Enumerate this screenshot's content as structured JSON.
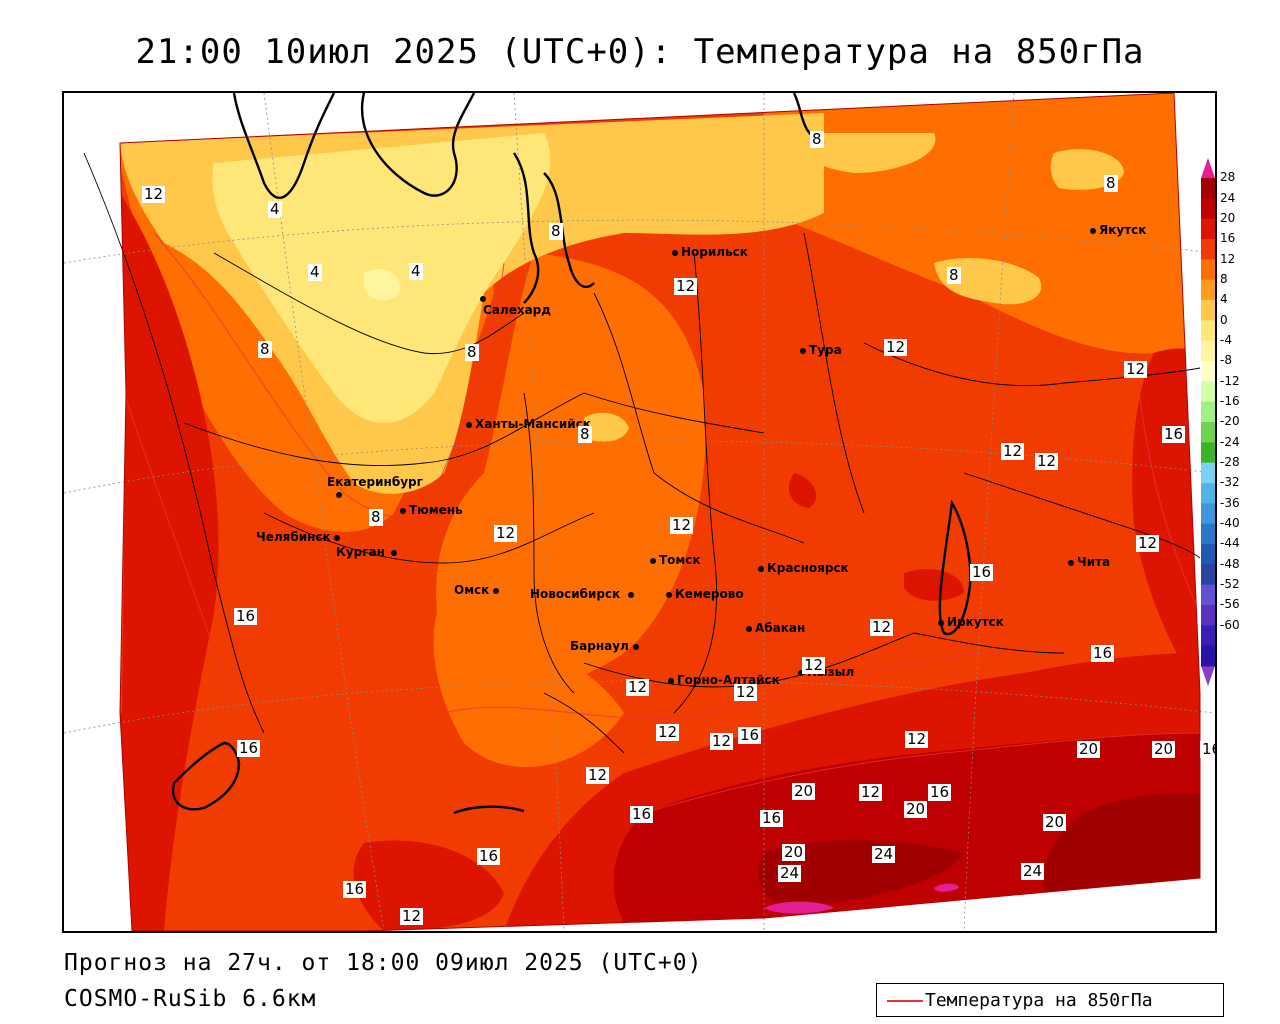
{
  "header": {
    "title": "21:00 10июл 2025 (UTC+0): Температура на 850гПа"
  },
  "footer": {
    "forecast": "Прогноз на 27ч. от 18:00 09июл 2025 (UTC+0)",
    "model": "COSMO-RuSib 6.6км",
    "legend_label": "Температура на 850гПа",
    "legend_line_color": "#e8343a"
  },
  "cities": [
    {
      "name": "Салехард"
    },
    {
      "name": "Норильск"
    },
    {
      "name": "Якутск"
    },
    {
      "name": "Тура"
    },
    {
      "name": "Ханты-Мансийск"
    },
    {
      "name": "Екатеринбург"
    },
    {
      "name": "Тюмень"
    },
    {
      "name": "Челябинск"
    },
    {
      "name": "Курган"
    },
    {
      "name": "Омск"
    },
    {
      "name": "Новосибирск"
    },
    {
      "name": "Томск"
    },
    {
      "name": "Кемерово"
    },
    {
      "name": "Красноярск"
    },
    {
      "name": "Барнаул"
    },
    {
      "name": "Абакан"
    },
    {
      "name": "Кызыл"
    },
    {
      "name": "Горно-Алтайск"
    },
    {
      "name": "Иркутск"
    },
    {
      "name": "Чита"
    }
  ],
  "contour_labels": [
    "12",
    "4",
    "4",
    "4",
    "8",
    "8",
    "8",
    "8",
    "8",
    "8",
    "8",
    "8",
    "12",
    "12",
    "12",
    "12",
    "12",
    "12",
    "12",
    "12",
    "12",
    "12",
    "12",
    "12",
    "12",
    "12",
    "12",
    "12",
    "12",
    "12",
    "16",
    "16",
    "16",
    "16",
    "16",
    "16",
    "16",
    "16",
    "16",
    "16",
    "16",
    "16",
    "20",
    "20",
    "20",
    "20",
    "20",
    "20",
    "24",
    "24",
    "24"
  ],
  "scale": {
    "colors": [
      "#a00000",
      "#be0000",
      "#dc1400",
      "#f03c00",
      "#ff6e00",
      "#ff9c1e",
      "#ffc84b",
      "#ffe678",
      "#fff5a0",
      "#ffffc8",
      "#d2ffaa",
      "#a0f082",
      "#6ed250",
      "#3cb428",
      "#78d2f0",
      "#50b4e6",
      "#3c96dc",
      "#2878c8",
      "#1e5ab4",
      "#2846a0",
      "#6450d2",
      "#5a32be",
      "#3c1eb4",
      "#2814a0"
    ],
    "labels": [
      "28",
      "24",
      "20",
      "16",
      "12",
      "8",
      "4",
      "0",
      "-4",
      "-8",
      "-12",
      "-16",
      "-20",
      "-24",
      "-28",
      "-32",
      "-36",
      "-40",
      "-44",
      "-48",
      "-52",
      "-56",
      "-60"
    ],
    "top_arrow_color": "#e61e96",
    "bottom_arrow_color": "#8c3cc8"
  }
}
